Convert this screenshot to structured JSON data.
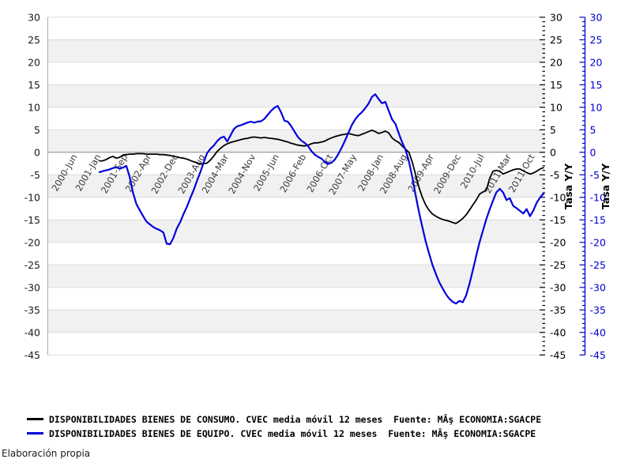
{
  "chart_data": {
    "type": "line",
    "title": "",
    "xlabel": "",
    "ylabel_right": "Tasa Y/Y",
    "ylabel_far_right": "Tasa Y/Y",
    "y_axis": {
      "min": -45,
      "max": 30,
      "step": 5,
      "ticks": [
        30,
        25,
        20,
        15,
        10,
        5,
        0,
        -5,
        -10,
        -15,
        -20,
        -25,
        -30,
        -35,
        -40,
        -45
      ]
    },
    "x_axis": {
      "unit": "month",
      "origin_label": "2000-Jun",
      "tick_labels": [
        "2000-Jun",
        "2001-Jan",
        "2001-Sep",
        "2002-Apr",
        "2002-Dec",
        "2003-Aug",
        "2004-Mar",
        "2004-Nov",
        "2005-Jun",
        "2006-Feb",
        "2006-Oct",
        "2007-May",
        "2008-Jan",
        "2008-Aug",
        "2009-Apr",
        "2009-Dec",
        "2010-Jul",
        "2011-Mar",
        "2011-Oct"
      ],
      "tick_months": [
        0,
        7,
        15,
        22,
        30,
        38,
        45,
        53,
        60,
        68,
        76,
        83,
        91,
        98,
        106,
        114,
        121,
        129,
        136
      ]
    },
    "grid": {
      "bands": true,
      "band_color": "#f1f1f1",
      "gridline_color": "#dcdcdc",
      "zero_line_color": "#888888"
    },
    "series": [
      {
        "name": "DISPONIBILIDADES BIENES DE CONSUMO. CVEC media móvil 12 meses",
        "color": "#000000",
        "start_month": 7,
        "start_label": "2001-Jan",
        "values": [
          -1.9,
          -1.9,
          -1.6,
          -1.2,
          -0.9,
          -1.3,
          -1.1,
          -0.6,
          -0.5,
          -0.4,
          -0.4,
          -0.3,
          -0.3,
          -0.3,
          -0.4,
          -0.4,
          -0.4,
          -0.4,
          -0.5,
          -0.5,
          -0.6,
          -0.7,
          -0.9,
          -1.0,
          -1.2,
          -1.3,
          -1.5,
          -1.8,
          -2.1,
          -2.3,
          -2.6,
          -2.5,
          -2.4,
          -1.7,
          -0.8,
          0.2,
          0.9,
          1.5,
          1.9,
          2.2,
          2.4,
          2.6,
          2.8,
          3.0,
          3.1,
          3.3,
          3.4,
          3.3,
          3.2,
          3.3,
          3.2,
          3.1,
          3.0,
          2.9,
          2.7,
          2.5,
          2.3,
          2.0,
          1.8,
          1.6,
          1.5,
          1.4,
          1.6,
          1.9,
          2.1,
          2.1,
          2.3,
          2.5,
          2.9,
          3.2,
          3.5,
          3.7,
          3.9,
          4.0,
          4.2,
          4.0,
          3.8,
          3.7,
          4.0,
          4.3,
          4.6,
          4.9,
          4.6,
          4.2,
          4.4,
          4.7,
          4.3,
          3.2,
          2.6,
          2.2,
          1.4,
          0.7,
          0.0,
          -2.2,
          -5.0,
          -7.8,
          -10.0,
          -11.7,
          -12.9,
          -13.7,
          -14.2,
          -14.6,
          -14.9,
          -15.1,
          -15.3,
          -15.6,
          -15.8,
          -15.3,
          -14.7,
          -13.9,
          -12.8,
          -11.7,
          -10.6,
          -9.3,
          -8.8,
          -8.5,
          -5.8,
          -4.2,
          -4.0,
          -4.2,
          -4.8,
          -4.5,
          -4.2,
          -3.9,
          -3.7,
          -3.7,
          -4.1,
          -4.5,
          -4.8,
          -4.6,
          -4.2,
          -3.7,
          -3.4
        ]
      },
      {
        "name": "DISPONIBILIDADES BIENES DE EQUIPO. CVEC media móvil 12 meses",
        "color": "#0000dd",
        "start_month": 7,
        "start_label": "2001-Jan",
        "values": [
          -4.4,
          -4.2,
          -4.0,
          -3.8,
          -3.5,
          -3.3,
          -3.6,
          -3.4,
          -3.0,
          -5.5,
          -9.0,
          -11.5,
          -12.9,
          -14.2,
          -15.4,
          -16.0,
          -16.6,
          -17.0,
          -17.3,
          -17.8,
          -20.3,
          -20.4,
          -19.0,
          -16.9,
          -15.5,
          -13.7,
          -12.1,
          -10.2,
          -8.4,
          -6.3,
          -4.4,
          -2.2,
          -0.2,
          0.8,
          1.5,
          2.5,
          3.2,
          3.5,
          2.4,
          3.8,
          5.2,
          5.8,
          6.0,
          6.3,
          6.6,
          6.8,
          6.6,
          6.8,
          6.9,
          7.4,
          8.3,
          9.2,
          9.9,
          10.3,
          8.9,
          7.0,
          6.8,
          5.8,
          4.6,
          3.4,
          2.6,
          2.1,
          1.4,
          0.3,
          -0.5,
          -1.0,
          -1.4,
          -2.1,
          -2.6,
          -2.3,
          -1.6,
          -0.4,
          1.0,
          2.6,
          4.3,
          6.0,
          7.3,
          8.2,
          8.9,
          9.8,
          10.8,
          12.3,
          12.9,
          11.8,
          10.9,
          11.2,
          9.2,
          7.3,
          6.3,
          4.2,
          2.2,
          0.6,
          -2.0,
          -5.5,
          -9.5,
          -13.3,
          -16.6,
          -19.8,
          -22.5,
          -25.0,
          -27.0,
          -28.8,
          -30.2,
          -31.5,
          -32.5,
          -33.2,
          -33.6,
          -33.0,
          -33.3,
          -31.8,
          -29.2,
          -26.2,
          -23.0,
          -20.0,
          -17.4,
          -14.9,
          -12.7,
          -10.7,
          -8.9,
          -8.1,
          -8.9,
          -10.6,
          -10.2,
          -11.9,
          -12.4,
          -13.0,
          -13.6,
          -12.6,
          -14.2,
          -12.9,
          -11.2,
          -10.0,
          -9.2
        ]
      }
    ],
    "axes_style": {
      "left_axis_color": "#aaaaaa",
      "right_tick_axis_color": "#000000",
      "far_right_axis_color": "#0000cc",
      "x_label_color": "#3c3c3c",
      "y_label_color": "#1a1a1a"
    }
  },
  "legend": {
    "items": [
      {
        "text": "DISPONIBILIDADES BIENES DE CONSUMO. CVEC media móvil 12 meses  Fuente: MÂş ECONOMIA:SGACPE",
        "color": "#000000"
      },
      {
        "text": "DISPONIBILIDADES BIENES DE EQUIPO. CVEC media móvil 12 meses  Fuente: MÂş ECONOMIA:SGACPE",
        "color": "#0000dd"
      }
    ]
  },
  "footer": {
    "text": "Elaboración propia"
  }
}
